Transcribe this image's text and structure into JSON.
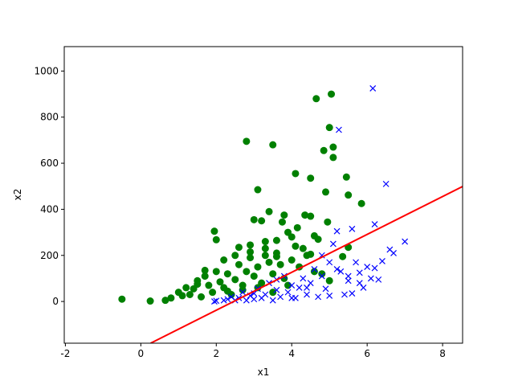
{
  "chart_data": {
    "type": "scatter",
    "xlabel": "x1",
    "ylabel": "x2",
    "xlim": [
      -2.03,
      8.53
    ],
    "ylim": [
      -181,
      1106
    ],
    "xticks": [
      -2,
      0,
      2,
      4,
      6,
      8
    ],
    "yticks": [
      0,
      200,
      400,
      600,
      800,
      1000
    ],
    "series": [
      {
        "color": "#008000",
        "marker": "o",
        "x": [
          -0.5,
          0.25,
          4.65,
          5.05,
          2.8,
          3.5,
          5.0,
          5.1,
          4.85,
          5.1,
          4.1,
          4.5,
          5.45,
          4.9,
          3.1,
          5.5,
          5.85,
          1.95,
          2.0,
          3.4,
          3.0,
          3.2,
          3.8,
          3.75,
          4.35,
          4.5,
          4.15,
          4.95,
          4.6,
          5.5,
          5.35,
          4.7,
          2.6,
          3.3,
          3.9,
          4.3,
          2.9,
          3.6,
          4.0,
          0.65,
          0.8,
          1.0,
          1.1,
          1.2,
          1.3,
          1.4,
          1.5,
          1.6,
          1.7,
          1.8,
          1.9,
          2.0,
          2.1,
          2.2,
          2.3,
          2.4,
          2.5,
          2.6,
          2.7,
          2.8,
          2.9,
          3.0,
          3.1,
          3.2,
          3.3,
          3.4,
          3.5,
          3.6,
          3.7,
          3.8,
          4.0,
          4.2,
          4.4,
          4.6,
          4.8,
          5.0,
          1.7,
          2.2,
          2.5,
          2.9,
          3.3,
          3.6,
          4.1,
          4.5,
          2.3,
          2.7,
          3.1,
          3.5,
          3.9,
          1.5
        ],
        "y": [
          10,
          2,
          880,
          900,
          695,
          680,
          755,
          670,
          655,
          625,
          555,
          535,
          540,
          475,
          485,
          462,
          425,
          305,
          268,
          390,
          355,
          350,
          375,
          345,
          375,
          370,
          320,
          345,
          285,
          235,
          195,
          270,
          235,
          260,
          300,
          230,
          245,
          265,
          280,
          5,
          15,
          40,
          25,
          60,
          30,
          55,
          90,
          20,
          110,
          70,
          40,
          130,
          85,
          60,
          120,
          30,
          95,
          160,
          70,
          130,
          190,
          110,
          150,
          80,
          200,
          170,
          120,
          210,
          160,
          100,
          180,
          150,
          200,
          130,
          120,
          90,
          135,
          180,
          200,
          215,
          230,
          195,
          240,
          205,
          45,
          50,
          60,
          40,
          70,
          75
        ]
      },
      {
        "color": "#0000ff",
        "marker": "x",
        "x": [
          6.15,
          5.25,
          6.5,
          6.2,
          5.6,
          5.2,
          7.0,
          6.6,
          6.7,
          5.1,
          6.0,
          6.1,
          6.4,
          5.8,
          5.9,
          5.7,
          5.5,
          5.4,
          5.3,
          5.0,
          4.9,
          4.8,
          4.7,
          4.6,
          4.5,
          4.4,
          4.3,
          4.2,
          4.1,
          4.0,
          3.9,
          3.8,
          3.7,
          3.6,
          3.5,
          3.4,
          3.3,
          3.2,
          3.1,
          3.0,
          2.9,
          2.8,
          2.7,
          2.6,
          2.5,
          2.4,
          2.3,
          2.2,
          2.0,
          1.95,
          5.6,
          5.8,
          6.3,
          4.8,
          5.2,
          4.4,
          3.6,
          3.0,
          4.0,
          5.5,
          6.2,
          5.0
        ],
        "y": [
          925,
          745,
          510,
          335,
          315,
          305,
          260,
          225,
          210,
          250,
          150,
          100,
          175,
          125,
          60,
          170,
          90,
          30,
          130,
          170,
          55,
          110,
          20,
          140,
          80,
          30,
          100,
          60,
          15,
          70,
          40,
          110,
          20,
          50,
          5,
          80,
          30,
          15,
          55,
          10,
          25,
          5,
          40,
          15,
          5,
          20,
          10,
          5,
          3,
          0,
          35,
          80,
          95,
          200,
          140,
          60,
          95,
          35,
          15,
          110,
          145,
          25
        ]
      },
      {
        "color": "#ff0000",
        "marker": "line",
        "x": [
          0.26,
          8.53
        ],
        "y": [
          -181,
          499
        ]
      }
    ]
  }
}
